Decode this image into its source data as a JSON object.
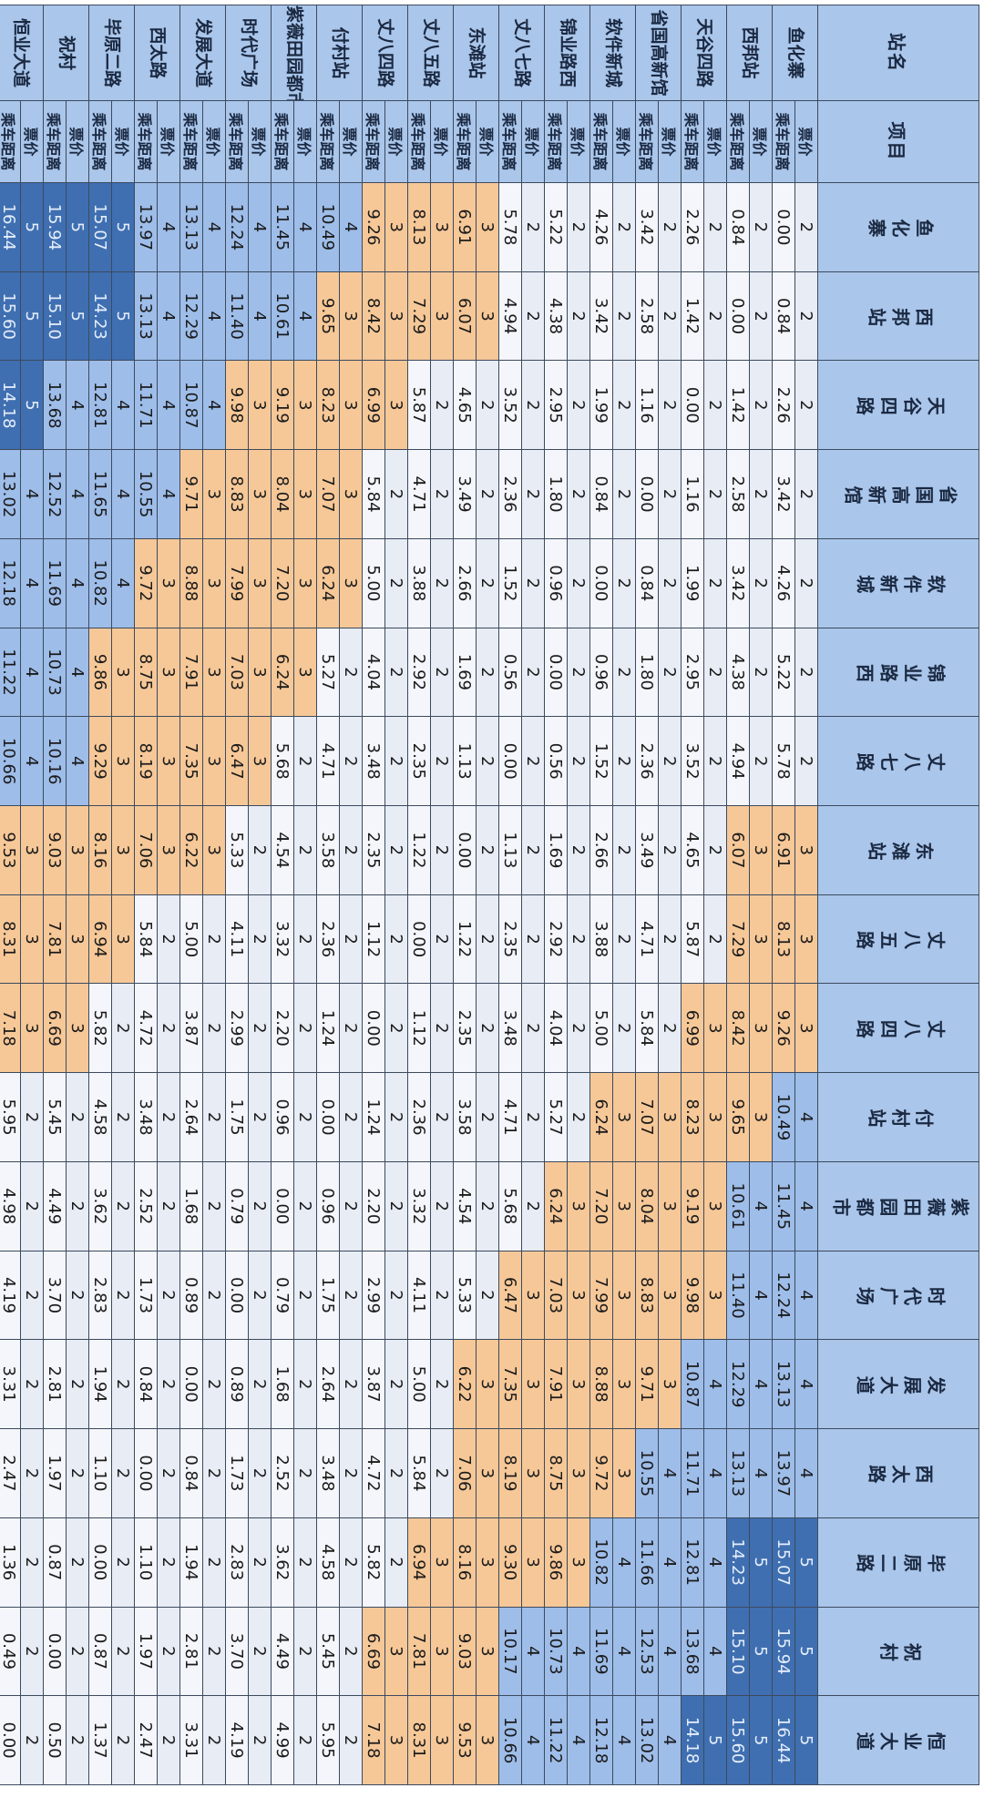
{
  "header": {
    "station_col": "站名",
    "item_col": "项目"
  },
  "item_labels": {
    "fare": "票价",
    "distance": "乘车距离"
  },
  "stations": [
    "鱼化寨",
    "西邦站",
    "天谷四路",
    "省国高新馆",
    "软件新城",
    "锦业路西",
    "丈八七路",
    "东滩站",
    "丈八五路",
    "丈八四路",
    "付村站",
    "紫薇田园都市",
    "时代广场",
    "发展大道",
    "西太路",
    "毕原二路",
    "祝村",
    "恒业大道"
  ],
  "fare_colors": {
    "2": "#e7ecf5",
    "3": "#f6c898",
    "4": "#9ebde9",
    "5": "#3f6fb1"
  },
  "rows": [
    {
      "fares": [
        2,
        2,
        2,
        2,
        2,
        2,
        2,
        3,
        3,
        3,
        4,
        4,
        4,
        4,
        4,
        5,
        5,
        5
      ],
      "distances": [
        "0.00",
        "0.84",
        "2.26",
        "3.42",
        "4.26",
        "5.22",
        "5.78",
        "6.91",
        "8.13",
        "9.26",
        "10.49",
        "11.45",
        "12.24",
        "13.13",
        "13.97",
        "15.07",
        "15.94",
        "16.44"
      ]
    },
    {
      "fares": [
        2,
        2,
        2,
        2,
        2,
        2,
        2,
        3,
        3,
        3,
        3,
        4,
        4,
        4,
        4,
        5,
        5,
        5
      ],
      "distances": [
        "0.84",
        "0.00",
        "1.42",
        "2.58",
        "3.42",
        "4.38",
        "4.94",
        "6.07",
        "7.29",
        "8.42",
        "9.65",
        "10.61",
        "11.40",
        "12.29",
        "13.13",
        "14.23",
        "15.10",
        "15.60"
      ]
    },
    {
      "fares": [
        2,
        2,
        2,
        2,
        2,
        2,
        2,
        2,
        2,
        3,
        3,
        3,
        3,
        4,
        4,
        4,
        4,
        5
      ],
      "distances": [
        "2.26",
        "1.42",
        "0.00",
        "1.16",
        "1.99",
        "2.95",
        "3.52",
        "4.65",
        "5.87",
        "6.99",
        "8.23",
        "9.19",
        "9.98",
        "10.87",
        "11.71",
        "12.81",
        "13.68",
        "14.18"
      ]
    },
    {
      "fares": [
        2,
        2,
        2,
        2,
        2,
        2,
        2,
        2,
        2,
        2,
        3,
        3,
        3,
        3,
        4,
        4,
        4,
        4
      ],
      "distances": [
        "3.42",
        "2.58",
        "1.16",
        "0.00",
        "0.84",
        "1.80",
        "2.36",
        "3.49",
        "4.71",
        "5.84",
        "7.07",
        "8.04",
        "8.83",
        "9.71",
        "10.55",
        "11.66",
        "12.53",
        "13.02"
      ]
    },
    {
      "fares": [
        2,
        2,
        2,
        2,
        2,
        2,
        2,
        2,
        2,
        2,
        3,
        3,
        3,
        3,
        3,
        4,
        4,
        4
      ],
      "distances": [
        "4.26",
        "3.42",
        "1.99",
        "0.84",
        "0.00",
        "0.96",
        "1.52",
        "2.66",
        "3.88",
        "5.00",
        "6.24",
        "7.20",
        "7.99",
        "8.88",
        "9.72",
        "10.82",
        "11.69",
        "12.18"
      ]
    },
    {
      "fares": [
        2,
        2,
        2,
        2,
        2,
        2,
        2,
        2,
        2,
        2,
        2,
        3,
        3,
        3,
        3,
        3,
        4,
        4
      ],
      "distances": [
        "5.22",
        "4.38",
        "2.95",
        "1.80",
        "0.96",
        "0.00",
        "0.56",
        "1.69",
        "2.92",
        "4.04",
        "5.27",
        "6.24",
        "7.03",
        "7.91",
        "8.75",
        "9.86",
        "10.73",
        "11.22"
      ]
    },
    {
      "fares": [
        2,
        2,
        2,
        2,
        2,
        2,
        2,
        2,
        2,
        2,
        2,
        2,
        3,
        3,
        3,
        3,
        4,
        4
      ],
      "distances": [
        "5.78",
        "4.94",
        "3.52",
        "2.36",
        "1.52",
        "0.56",
        "0.00",
        "1.13",
        "2.35",
        "3.48",
        "4.71",
        "5.68",
        "6.47",
        "7.35",
        "8.19",
        "9.30",
        "10.17",
        "10.66"
      ]
    },
    {
      "fares": [
        3,
        3,
        2,
        2,
        2,
        2,
        2,
        2,
        2,
        2,
        2,
        2,
        2,
        3,
        3,
        3,
        3,
        3
      ],
      "distances": [
        "6.91",
        "6.07",
        "4.65",
        "3.49",
        "2.66",
        "1.69",
        "1.13",
        "0.00",
        "1.22",
        "2.35",
        "3.58",
        "4.54",
        "5.33",
        "6.22",
        "7.06",
        "8.16",
        "9.03",
        "9.53"
      ]
    },
    {
      "fares": [
        3,
        3,
        2,
        2,
        2,
        2,
        2,
        2,
        2,
        2,
        2,
        2,
        2,
        2,
        2,
        3,
        3,
        3
      ],
      "distances": [
        "8.13",
        "7.29",
        "5.87",
        "4.71",
        "3.88",
        "2.92",
        "2.35",
        "1.22",
        "0.00",
        "1.12",
        "2.36",
        "3.32",
        "4.11",
        "5.00",
        "5.84",
        "6.94",
        "7.81",
        "8.31"
      ]
    },
    {
      "fares": [
        3,
        3,
        3,
        2,
        2,
        2,
        2,
        2,
        2,
        2,
        2,
        2,
        2,
        2,
        2,
        2,
        3,
        3
      ],
      "distances": [
        "9.26",
        "8.42",
        "6.99",
        "5.84",
        "5.00",
        "4.04",
        "3.48",
        "2.35",
        "1.12",
        "0.00",
        "1.24",
        "2.20",
        "2.99",
        "3.87",
        "4.72",
        "5.82",
        "6.69",
        "7.18"
      ]
    },
    {
      "fares": [
        4,
        3,
        3,
        3,
        3,
        2,
        2,
        2,
        2,
        2,
        2,
        2,
        2,
        2,
        2,
        2,
        2,
        2
      ],
      "distances": [
        "10.49",
        "9.65",
        "8.23",
        "7.07",
        "6.24",
        "5.27",
        "4.71",
        "3.58",
        "2.36",
        "1.24",
        "0.00",
        "0.96",
        "1.75",
        "2.64",
        "3.48",
        "4.58",
        "5.45",
        "5.95"
      ]
    },
    {
      "fares": [
        4,
        4,
        3,
        3,
        3,
        3,
        2,
        2,
        2,
        2,
        2,
        2,
        2,
        2,
        2,
        2,
        2,
        2
      ],
      "distances": [
        "11.45",
        "10.61",
        "9.19",
        "8.04",
        "7.20",
        "6.24",
        "5.68",
        "4.54",
        "3.32",
        "2.20",
        "0.96",
        "0.00",
        "0.79",
        "1.68",
        "2.52",
        "3.62",
        "4.49",
        "4.99"
      ]
    },
    {
      "fares": [
        4,
        4,
        3,
        3,
        3,
        3,
        3,
        2,
        2,
        2,
        2,
        2,
        2,
        2,
        2,
        2,
        2,
        2
      ],
      "distances": [
        "12.24",
        "11.40",
        "9.98",
        "8.83",
        "7.99",
        "7.03",
        "6.47",
        "5.33",
        "4.11",
        "2.99",
        "1.75",
        "0.79",
        "0.00",
        "0.89",
        "1.73",
        "2.83",
        "3.70",
        "4.19"
      ]
    },
    {
      "fares": [
        4,
        4,
        4,
        3,
        3,
        3,
        3,
        3,
        2,
        2,
        2,
        2,
        2,
        2,
        2,
        2,
        2,
        2
      ],
      "distances": [
        "13.13",
        "12.29",
        "10.87",
        "9.71",
        "8.88",
        "7.91",
        "7.35",
        "6.22",
        "5.00",
        "3.87",
        "2.64",
        "1.68",
        "0.89",
        "0.00",
        "0.84",
        "1.94",
        "2.81",
        "3.31"
      ]
    },
    {
      "fares": [
        4,
        4,
        4,
        4,
        3,
        3,
        3,
        3,
        2,
        2,
        2,
        2,
        2,
        2,
        2,
        2,
        2,
        2
      ],
      "distances": [
        "13.97",
        "13.13",
        "11.71",
        "10.55",
        "9.72",
        "8.75",
        "8.19",
        "7.06",
        "5.84",
        "4.72",
        "3.48",
        "2.52",
        "1.73",
        "0.84",
        "0.00",
        "1.10",
        "1.97",
        "2.47"
      ]
    },
    {
      "fares": [
        5,
        5,
        4,
        4,
        4,
        3,
        3,
        3,
        3,
        2,
        2,
        2,
        2,
        2,
        2,
        2,
        2,
        2
      ],
      "distances": [
        "15.07",
        "14.23",
        "12.81",
        "11.65",
        "10.82",
        "9.86",
        "9.29",
        "8.16",
        "6.94",
        "5.82",
        "4.58",
        "3.62",
        "2.83",
        "1.94",
        "1.10",
        "0.00",
        "0.87",
        "1.37"
      ]
    },
    {
      "fares": [
        5,
        5,
        4,
        4,
        4,
        4,
        4,
        3,
        3,
        3,
        2,
        2,
        2,
        2,
        2,
        2,
        2,
        2
      ],
      "distances": [
        "15.94",
        "15.10",
        "13.68",
        "12.52",
        "11.69",
        "10.73",
        "10.16",
        "9.03",
        "7.81",
        "6.69",
        "5.45",
        "4.49",
        "3.70",
        "2.81",
        "1.97",
        "0.87",
        "0.00",
        "0.50"
      ]
    },
    {
      "fares": [
        5,
        5,
        5,
        4,
        4,
        4,
        4,
        3,
        3,
        3,
        2,
        2,
        2,
        2,
        2,
        2,
        2,
        2
      ],
      "distances": [
        "16.44",
        "15.60",
        "14.18",
        "13.02",
        "12.18",
        "11.22",
        "10.66",
        "9.53",
        "8.31",
        "7.18",
        "5.95",
        "4.98",
        "4.19",
        "3.31",
        "2.47",
        "1.36",
        "0.49",
        "0.00"
      ]
    }
  ]
}
